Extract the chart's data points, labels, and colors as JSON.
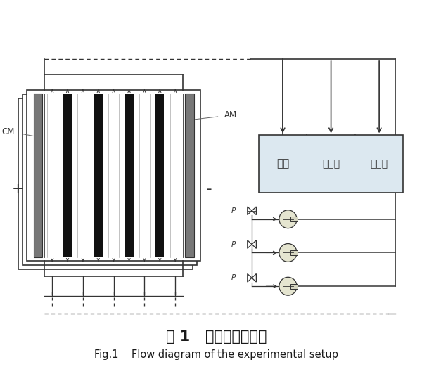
{
  "title_cn": "图 1   电滲析设备流程",
  "title_en": "Fig.1    Flow diagram of the experimental setup",
  "bg_color": "#ffffff",
  "box_color": "#dce8f0",
  "line_color": "#333333",
  "membrane_black": "#111111",
  "labels_CM": "CM",
  "labels_AM": "AM",
  "labels_plus": "+",
  "labels_minus": "-",
  "labels_room1": "极室",
  "labels_room2": "淡化室",
  "labels_room3": "浓缩室",
  "labels_p": "P"
}
